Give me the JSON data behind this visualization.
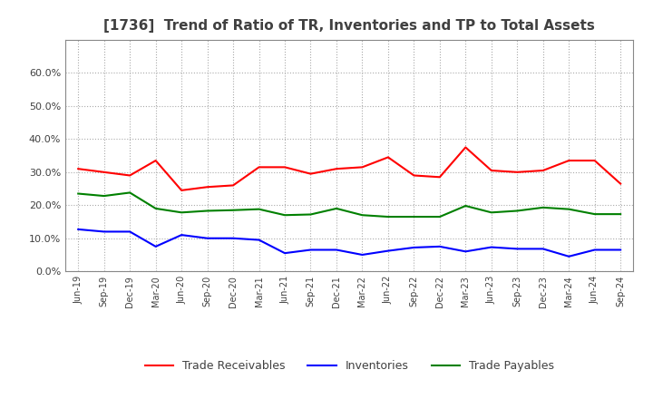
{
  "title": "[1736]  Trend of Ratio of TR, Inventories and TP to Total Assets",
  "x_labels": [
    "Jun-19",
    "Sep-19",
    "Dec-19",
    "Mar-20",
    "Jun-20",
    "Sep-20",
    "Dec-20",
    "Mar-21",
    "Jun-21",
    "Sep-21",
    "Dec-21",
    "Mar-22",
    "Jun-22",
    "Sep-22",
    "Dec-22",
    "Mar-23",
    "Jun-23",
    "Sep-23",
    "Dec-23",
    "Mar-24",
    "Jun-24",
    "Sep-24"
  ],
  "trade_receivables": [
    0.31,
    0.3,
    0.29,
    0.335,
    0.245,
    0.255,
    0.26,
    0.315,
    0.315,
    0.295,
    0.31,
    0.315,
    0.345,
    0.29,
    0.285,
    0.375,
    0.305,
    0.3,
    0.305,
    0.335,
    0.335,
    0.265
  ],
  "inventories": [
    0.127,
    0.12,
    0.12,
    0.075,
    0.11,
    0.1,
    0.1,
    0.095,
    0.055,
    0.065,
    0.065,
    0.05,
    0.062,
    0.072,
    0.075,
    0.06,
    0.073,
    0.068,
    0.068,
    0.045,
    0.065,
    0.065
  ],
  "trade_payables": [
    0.235,
    0.228,
    0.238,
    0.19,
    0.178,
    0.183,
    0.185,
    0.188,
    0.17,
    0.172,
    0.19,
    0.17,
    0.165,
    0.165,
    0.165,
    0.198,
    0.178,
    0.183,
    0.193,
    0.188,
    0.173,
    0.173
  ],
  "tr_color": "#FF0000",
  "inv_color": "#0000FF",
  "tp_color": "#008000",
  "bg_color": "#FFFFFF",
  "plot_bg_color": "#FFFFFF",
  "grid_color": "#AAAAAA",
  "ylim": [
    0.0,
    0.7
  ],
  "yticks": [
    0.0,
    0.1,
    0.2,
    0.3,
    0.4,
    0.5,
    0.6
  ],
  "legend_labels": [
    "Trade Receivables",
    "Inventories",
    "Trade Payables"
  ],
  "title_color": "#404040",
  "tick_color": "#404040",
  "spine_color": "#888888"
}
